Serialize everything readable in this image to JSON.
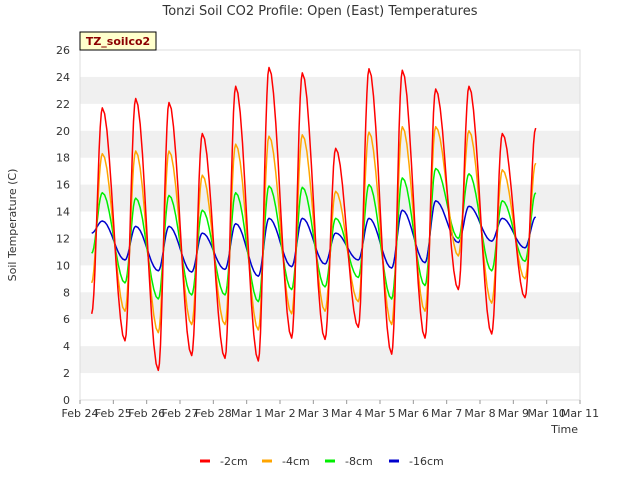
{
  "chart_data": {
    "type": "line",
    "title": "Tonzi Soil CO2 Profile: Open (East) Temperatures",
    "xlabel": "Time",
    "ylabel": "Soil Temperature (C)",
    "site_tag": "TZ_soilco2",
    "ylim": [
      0,
      26
    ],
    "yticks": [
      "0",
      "2",
      "4",
      "6",
      "8",
      "10",
      "12",
      "14",
      "16",
      "18",
      "20",
      "22",
      "24",
      "26"
    ],
    "xlim_days": [
      24,
      39
    ],
    "xticks": [
      "Feb 24",
      "Feb 25",
      "Feb 26",
      "Feb 27",
      "Feb 28",
      "Mar 1",
      "Mar 2",
      "Mar 3",
      "Mar 4",
      "Mar 5",
      "Mar 6",
      "Mar 7",
      "Mar 8",
      "Mar 9",
      "Mar 10",
      "Mar 11"
    ],
    "grid": "horizontal bands",
    "legend_position": "bottom",
    "x_days_start": 24.35,
    "x_days_end": 38.0,
    "series": [
      {
        "name": "-2cm",
        "color": "#ff0000",
        "mins": [
          6.4,
          4.4,
          2.2,
          3.3,
          3.1,
          2.9,
          4.6,
          4.5,
          5.4,
          3.4,
          4.6,
          8.2,
          4.9,
          7.6,
          6.4,
          9.0
        ],
        "maxs": [
          21.7,
          22.4,
          22.1,
          19.8,
          23.3,
          24.7,
          24.3,
          18.7,
          24.6,
          24.5,
          23.1,
          23.3,
          19.8,
          20.2
        ]
      },
      {
        "name": "-4cm",
        "color": "#ffa500",
        "mins": [
          8.7,
          6.6,
          5.0,
          5.6,
          5.6,
          5.2,
          6.4,
          6.6,
          7.3,
          5.6,
          6.6,
          10.7,
          7.2,
          9.0,
          8.1,
          10.6
        ],
        "maxs": [
          18.3,
          18.5,
          18.5,
          16.7,
          19.0,
          19.6,
          19.7,
          15.5,
          19.9,
          20.3,
          20.3,
          20.0,
          17.1,
          17.6
        ]
      },
      {
        "name": "-8cm",
        "color": "#00ee00",
        "mins": [
          10.9,
          8.7,
          7.5,
          7.8,
          7.8,
          7.3,
          8.2,
          8.4,
          9.1,
          7.5,
          8.5,
          12.0,
          9.6,
          10.3,
          9.9,
          11.7
        ],
        "maxs": [
          15.4,
          15.0,
          15.2,
          14.1,
          15.4,
          15.9,
          15.8,
          13.5,
          16.0,
          16.5,
          17.2,
          16.8,
          14.8,
          15.4
        ]
      },
      {
        "name": "-16cm",
        "color": "#0000cd",
        "mins": [
          12.4,
          10.4,
          9.6,
          9.5,
          9.7,
          9.2,
          9.9,
          10.1,
          10.4,
          9.8,
          10.2,
          11.7,
          11.8,
          11.3,
          11.2,
          12.6
        ],
        "maxs": [
          13.3,
          12.9,
          12.9,
          12.4,
          13.1,
          13.5,
          13.5,
          12.4,
          13.5,
          14.1,
          14.8,
          14.4,
          13.5,
          13.6
        ]
      }
    ]
  }
}
